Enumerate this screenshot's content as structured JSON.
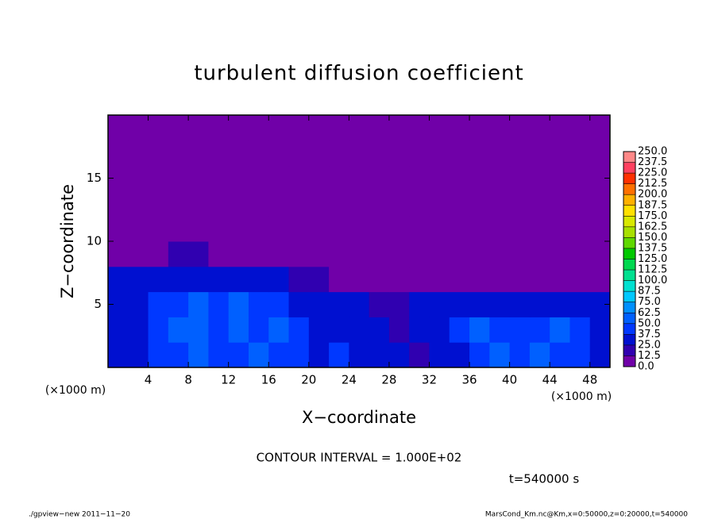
{
  "chart_data": {
    "type": "heatmap",
    "title": "turbulent diffusion coefficient",
    "x_label": "X−coordinate",
    "y_label": "Z−coordinate",
    "x_unit_label": "(×1000 m)",
    "y_unit_label": "(×1000 m)",
    "contour_interval_text": "CONTOUR INTERVAL = 1.000E+02",
    "time_text": "t=540000 s",
    "footer_left": "./gpview−new   2011−11−20",
    "footer_right": "MarsCond_Km.nc@Km,x=0:50000,z=0:20000,t=540000",
    "xlim": [
      0,
      50
    ],
    "ylim": [
      0,
      20
    ],
    "xticks": [
      4,
      8,
      12,
      16,
      20,
      24,
      28,
      32,
      36,
      40,
      44,
      48
    ],
    "yticks": [
      5,
      10,
      15
    ],
    "x": [
      1,
      3,
      5,
      7,
      9,
      11,
      13,
      15,
      17,
      19,
      21,
      23,
      25,
      27,
      29,
      31,
      33,
      35,
      37,
      39,
      41,
      43,
      45,
      47,
      49
    ],
    "z": [
      1,
      3,
      5,
      7,
      9,
      11,
      13,
      15,
      17,
      19
    ],
    "values": [
      [
        35,
        30,
        40,
        45,
        50,
        40,
        45,
        50,
        40,
        45,
        35,
        40,
        30,
        35,
        25,
        20,
        30,
        35,
        45,
        50,
        40,
        50,
        45,
        40,
        35
      ],
      [
        30,
        35,
        40,
        50,
        55,
        45,
        50,
        45,
        50,
        40,
        35,
        35,
        25,
        30,
        20,
        25,
        35,
        40,
        50,
        45,
        45,
        40,
        50,
        45,
        30
      ],
      [
        30,
        35,
        40,
        45,
        50,
        45,
        50,
        45,
        40,
        35,
        30,
        30,
        25,
        20,
        15,
        25,
        30,
        35,
        30,
        35,
        30,
        35,
        30,
        35,
        25
      ],
      [
        25,
        30,
        30,
        35,
        35,
        30,
        30,
        30,
        25,
        20,
        15,
        10,
        5,
        0,
        5,
        10,
        5,
        10,
        5,
        10,
        5,
        5,
        10,
        5,
        10
      ],
      [
        0,
        0,
        10,
        15,
        15,
        10,
        5,
        0,
        0,
        0,
        0,
        0,
        0,
        0,
        0,
        0,
        0,
        0,
        0,
        0,
        0,
        0,
        0,
        0,
        0
      ],
      [
        0,
        0,
        0,
        0,
        0,
        0,
        0,
        0,
        0,
        0,
        0,
        0,
        0,
        0,
        0,
        0,
        0,
        0,
        0,
        0,
        0,
        0,
        0,
        0,
        0
      ],
      [
        0,
        0,
        0,
        0,
        0,
        0,
        0,
        0,
        0,
        0,
        0,
        0,
        0,
        0,
        0,
        0,
        0,
        0,
        0,
        0,
        0,
        0,
        0,
        0,
        0
      ],
      [
        0,
        0,
        0,
        0,
        0,
        0,
        0,
        0,
        0,
        0,
        0,
        0,
        0,
        0,
        0,
        0,
        0,
        0,
        0,
        0,
        0,
        0,
        0,
        0,
        0
      ],
      [
        0,
        0,
        0,
        0,
        0,
        0,
        0,
        0,
        0,
        0,
        0,
        0,
        0,
        0,
        0,
        0,
        0,
        0,
        0,
        0,
        0,
        0,
        0,
        0,
        0
      ],
      [
        0,
        0,
        0,
        0,
        0,
        0,
        0,
        0,
        0,
        0,
        0,
        0,
        0,
        0,
        0,
        0,
        0,
        0,
        0,
        0,
        0,
        0,
        0,
        0,
        0
      ]
    ],
    "colorbar_levels": [
      {
        "value": 0,
        "label": "0.0"
      },
      12.5,
      {
        "value": 25,
        "label": "25.0"
      },
      37.5,
      {
        "value": 50,
        "label": "50.0"
      },
      62.5,
      {
        "value": 75,
        "label": "75.0"
      },
      87.5,
      {
        "value": 100,
        "label": "100.0"
      },
      112.5,
      {
        "value": 125,
        "label": "125.0"
      },
      137.5,
      {
        "value": 150,
        "label": "150.0"
      },
      162.5,
      {
        "value": 175,
        "label": "175.0"
      },
      187.5,
      {
        "value": 200,
        "label": "200.0"
      },
      212.5,
      {
        "value": 225,
        "label": "225.0"
      },
      237.5,
      {
        "value": 250,
        "label": "250.0"
      }
    ],
    "colorbar_colors": [
      "#7000a8",
      "#3000b0",
      "#0010d0",
      "#0038ff",
      "#0060ff",
      "#0090ff",
      "#00c8ff",
      "#00e0d0",
      "#00e090",
      "#00d850",
      "#00c800",
      "#60d800",
      "#a8e000",
      "#d8e800",
      "#ffe000",
      "#ffb000",
      "#ff7000",
      "#ff3000",
      "#ff4060",
      "#ff8888"
    ]
  }
}
